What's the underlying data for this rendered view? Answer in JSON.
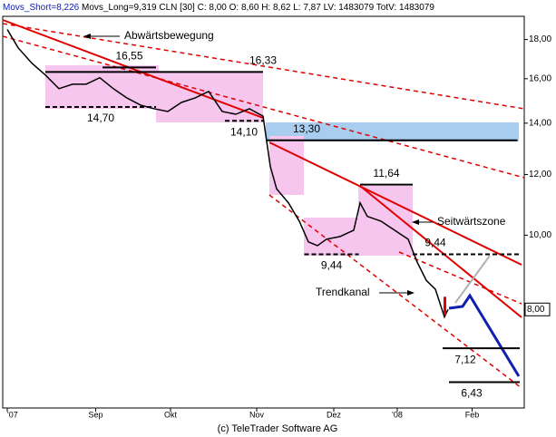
{
  "chart_data": {
    "type": "line",
    "header": {
      "short": "Movs_Short=8,226",
      "long": "Movs_Long=9,319",
      "quote": "CLN [30] C: 8,00 O: 8,60 H: 8,62 L: 7,87 LV: 1483079 TotV: 1483079"
    },
    "source": "(c) TeleTrader Software AG",
    "log_scale": true,
    "grid": false,
    "xlim": [
      0,
      230
    ],
    "ylim": [
      5.95,
      19.3
    ],
    "xticks": [
      {
        "value": 2,
        "label": "'07"
      },
      {
        "value": 41,
        "label": "Sep"
      },
      {
        "value": 74,
        "label": "Okt"
      },
      {
        "value": 112,
        "label": "Nov"
      },
      {
        "value": 146,
        "label": "Dez"
      },
      {
        "value": 174,
        "label": "'08"
      },
      {
        "value": 207,
        "label": "Feb"
      }
    ],
    "yticks": [
      {
        "value": 8,
        "label": "8,00"
      },
      {
        "value": 10,
        "label": "10,00"
      },
      {
        "value": 12,
        "label": "12,00"
      },
      {
        "value": 14,
        "label": "14,00"
      },
      {
        "value": 16,
        "label": "16,00"
      },
      {
        "value": 18,
        "label": "18,00"
      }
    ],
    "series": [
      {
        "color": "#000000",
        "x": [
          2,
          6.8,
          12.8,
          18.8,
          24.8,
          30.8,
          36.8,
          42.8,
          48.8,
          54.8,
          60.8,
          66.8,
          72.8,
          78.8,
          84.8,
          90.8,
          96.8,
          102.8,
          108.8,
          114.8,
          118,
          120.8,
          126,
          130.8,
          134.8,
          138.8,
          142.8,
          148.8,
          154.8,
          157.6,
          160.8,
          166.8,
          172.8,
          178.8,
          182.8,
          186.8,
          190.8,
          194.8,
          196.4
        ],
        "values": [
          18.55,
          17.56,
          16.77,
          16.18,
          15.53,
          15.74,
          15.74,
          16.05,
          15.53,
          15.1,
          14.78,
          14.62,
          14.5,
          14.9,
          15.1,
          15.4,
          14.5,
          14.38,
          14.62,
          14.3,
          12.3,
          11.49,
          11.02,
          10.43,
          9.8,
          9.69,
          9.88,
          9.96,
          10.15,
          11.02,
          10.58,
          10.43,
          10.15,
          9.88,
          9.22,
          8.73,
          8.5,
          7.82,
          8.0
        ]
      }
    ],
    "levels": [
      {
        "value": 16.55,
        "label": "16,55",
        "x": [
          44,
          67.6
        ]
      },
      {
        "value": 16.33,
        "label": "16,33",
        "x": [
          18.8,
          114.8
        ]
      },
      {
        "value": 14.7,
        "label": "14,70",
        "x": [
          18.8,
          67.6
        ]
      },
      {
        "value": 14.1,
        "label": "14,10",
        "x": [
          98,
          114.8
        ]
      },
      {
        "value": 13.3,
        "label": "13,30",
        "x": [
          116,
          227
        ]
      },
      {
        "value": 11.64,
        "label": "11,64",
        "x": [
          157.6,
          180.8
        ]
      },
      {
        "value": 9.44,
        "label": "9,44",
        "x": [
          133,
          157
        ]
      },
      {
        "value": 9.44,
        "label": "9,44",
        "x": [
          180.8,
          228.8
        ]
      },
      {
        "value": 7.12,
        "label": "7,12",
        "x": [
          194,
          228
        ]
      },
      {
        "value": 6.43,
        "label": "6,43",
        "x": [
          196.8,
          228
        ]
      }
    ],
    "last": {
      "value": 8.0,
      "label": "8,00"
    },
    "notes": [
      "Abwärtsbewegung",
      "Seitwärtszone",
      "Trendkanal"
    ]
  }
}
